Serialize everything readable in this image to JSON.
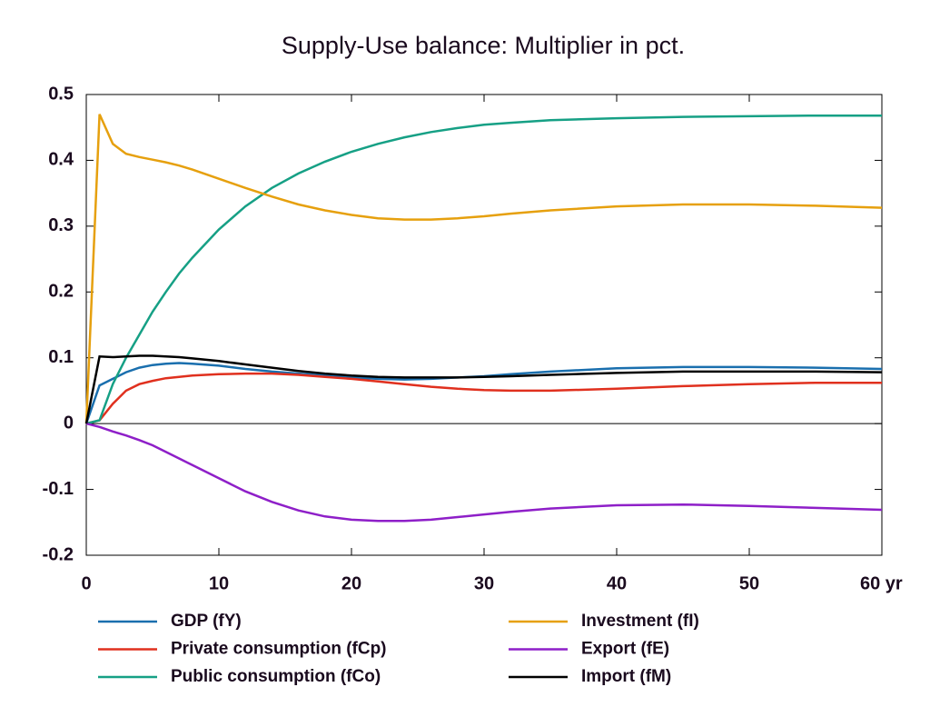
{
  "chart_data": {
    "type": "line",
    "title": "Supply-Use balance: Multiplier in pct.",
    "x": [
      0,
      1,
      2,
      3,
      4,
      5,
      6,
      7,
      8,
      10,
      12,
      14,
      16,
      18,
      20,
      22,
      24,
      26,
      28,
      30,
      32,
      35,
      40,
      45,
      50,
      55,
      60
    ],
    "xlim": [
      0,
      60
    ],
    "xticks": [
      0,
      10,
      20,
      30,
      40,
      50,
      {
        "value": 60,
        "label": "60 yr"
      }
    ],
    "ylim": [
      -0.2,
      0.5
    ],
    "yticks": [
      -0.2,
      -0.1,
      0,
      0.1,
      0.2,
      0.3,
      0.4,
      0.5
    ],
    "grid": false,
    "legend": "bottom",
    "series": [
      {
        "name": "GDP (fY)",
        "color": "#1a6fae",
        "values": [
          0,
          0.058,
          0.068,
          0.078,
          0.085,
          0.089,
          0.091,
          0.092,
          0.091,
          0.088,
          0.083,
          0.079,
          0.076,
          0.073,
          0.07,
          0.068,
          0.067,
          0.068,
          0.07,
          0.072,
          0.075,
          0.079,
          0.084,
          0.086,
          0.086,
          0.085,
          0.083
        ]
      },
      {
        "name": "Private consumption (fCp)",
        "color": "#e0301e",
        "values": [
          0,
          0.005,
          0.03,
          0.05,
          0.06,
          0.065,
          0.069,
          0.071,
          0.073,
          0.075,
          0.076,
          0.076,
          0.074,
          0.071,
          0.068,
          0.064,
          0.06,
          0.056,
          0.053,
          0.051,
          0.05,
          0.05,
          0.053,
          0.057,
          0.06,
          0.062,
          0.062
        ]
      },
      {
        "name": "Public consumption (fCo)",
        "color": "#16a085",
        "values": [
          0,
          0.005,
          0.06,
          0.1,
          0.135,
          0.17,
          0.2,
          0.228,
          0.252,
          0.295,
          0.33,
          0.358,
          0.38,
          0.398,
          0.413,
          0.425,
          0.435,
          0.443,
          0.449,
          0.454,
          0.457,
          0.461,
          0.464,
          0.466,
          0.467,
          0.468,
          0.468
        ]
      },
      {
        "name": "Investment (fI)",
        "color": "#e6a00e",
        "values": [
          0,
          0.47,
          0.425,
          0.41,
          0.405,
          0.401,
          0.397,
          0.392,
          0.386,
          0.372,
          0.358,
          0.345,
          0.333,
          0.324,
          0.317,
          0.312,
          0.31,
          0.31,
          0.312,
          0.315,
          0.319,
          0.324,
          0.33,
          0.333,
          0.333,
          0.331,
          0.328
        ]
      },
      {
        "name": "Export (fE)",
        "color": "#8e1fc8",
        "values": [
          0,
          -0.005,
          -0.012,
          -0.018,
          -0.025,
          -0.033,
          -0.043,
          -0.053,
          -0.063,
          -0.083,
          -0.103,
          -0.119,
          -0.132,
          -0.141,
          -0.146,
          -0.148,
          -0.148,
          -0.146,
          -0.142,
          -0.138,
          -0.134,
          -0.129,
          -0.124,
          -0.123,
          -0.125,
          -0.128,
          -0.131
        ]
      },
      {
        "name": "Import (fM)",
        "color": "#000000",
        "values": [
          0,
          0.102,
          0.101,
          0.102,
          0.103,
          0.103,
          0.102,
          0.101,
          0.099,
          0.095,
          0.09,
          0.085,
          0.08,
          0.076,
          0.073,
          0.071,
          0.07,
          0.07,
          0.07,
          0.071,
          0.072,
          0.074,
          0.077,
          0.079,
          0.079,
          0.079,
          0.078
        ]
      }
    ]
  }
}
